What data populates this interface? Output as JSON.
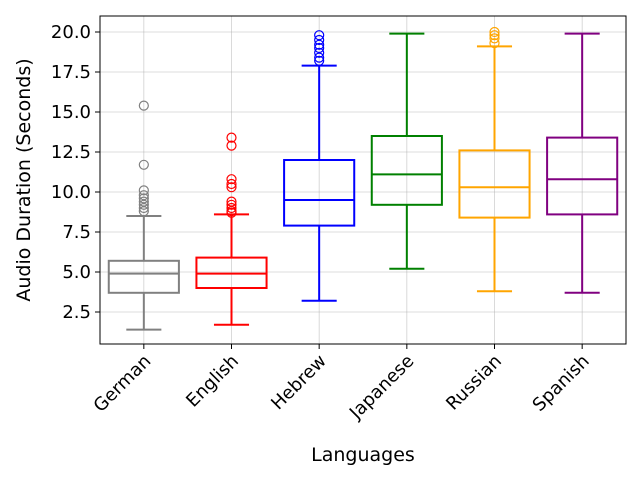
{
  "chart_data": {
    "type": "boxplot",
    "title": "",
    "xlabel": "Languages",
    "ylabel": "Audio Duration (Seconds)",
    "ylim": [
      0.5,
      21.0
    ],
    "yticks": [
      2.5,
      5.0,
      7.5,
      10.0,
      12.5,
      15.0,
      17.5,
      20.0
    ],
    "ytick_labels": [
      "2.5",
      "5.0",
      "7.5",
      "10.0",
      "12.5",
      "15.0",
      "17.5",
      "20.0"
    ],
    "grid": true,
    "categories": [
      "German",
      "English",
      "Hebrew",
      "Japanese",
      "Russian",
      "Spanish"
    ],
    "series": [
      {
        "name": "German",
        "color": "#808080",
        "whisker_low": 1.4,
        "q1": 3.7,
        "median": 4.9,
        "q3": 5.7,
        "whisker_high": 8.5,
        "outliers": [
          8.8,
          9.0,
          9.2,
          9.4,
          9.6,
          9.8,
          10.1,
          11.7,
          15.4
        ]
      },
      {
        "name": "English",
        "color": "#ff0000",
        "whisker_low": 1.7,
        "q1": 4.0,
        "median": 4.9,
        "q3": 5.9,
        "whisker_high": 8.6,
        "outliers": [
          8.7,
          8.8,
          9.0,
          9.2,
          9.4,
          10.3,
          10.5,
          10.8,
          12.9,
          13.4
        ]
      },
      {
        "name": "Hebrew",
        "color": "#0000ff",
        "whisker_low": 3.2,
        "q1": 7.9,
        "median": 9.5,
        "q3": 12.0,
        "whisker_high": 17.9,
        "outliers": [
          18.2,
          18.4,
          18.7,
          19.0,
          19.2,
          19.5,
          19.8
        ]
      },
      {
        "name": "Japanese",
        "color": "#008000",
        "whisker_low": 5.2,
        "q1": 9.2,
        "median": 11.1,
        "q3": 13.5,
        "whisker_high": 19.9,
        "outliers": []
      },
      {
        "name": "Russian",
        "color": "#ffa500",
        "whisker_low": 3.8,
        "q1": 8.4,
        "median": 10.3,
        "q3": 12.6,
        "whisker_high": 19.1,
        "outliers": [
          19.3,
          19.6,
          19.8,
          20.0
        ]
      },
      {
        "name": "Spanish",
        "color": "#800080",
        "whisker_low": 3.7,
        "q1": 8.6,
        "median": 10.8,
        "q3": 13.4,
        "whisker_high": 19.9,
        "outliers": []
      }
    ]
  }
}
